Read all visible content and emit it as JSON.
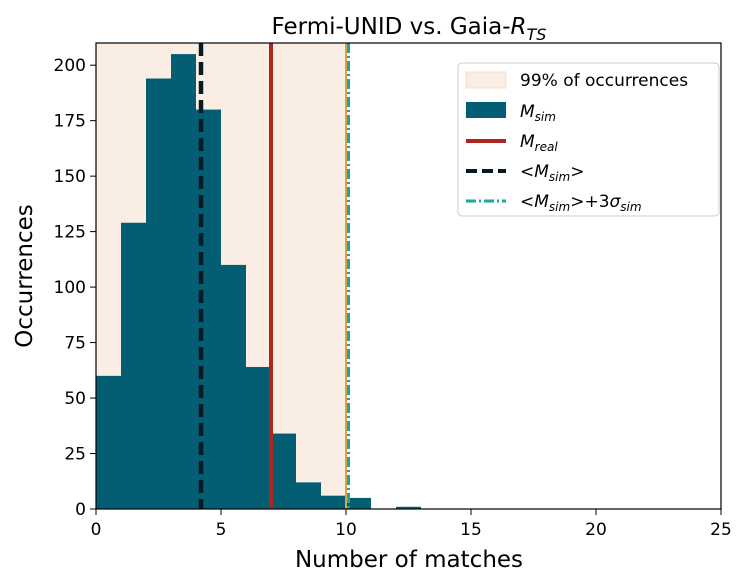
{
  "chart_data": {
    "type": "bar",
    "title_main": "Fermi-UNID vs. Gaia-",
    "title_var": "R",
    "title_sub": "TS",
    "xlabel": "Number of matches",
    "ylabel": "Occurrences",
    "xlim": [
      0,
      25
    ],
    "ylim": [
      0,
      210
    ],
    "xticks": [
      0,
      5,
      10,
      15,
      20,
      25
    ],
    "yticks": [
      0,
      25,
      50,
      75,
      100,
      125,
      150,
      175,
      200
    ],
    "grid": false,
    "legend_position": "top-right",
    "bin_width": 1,
    "bins": [
      {
        "x": 0,
        "count": 60
      },
      {
        "x": 1,
        "count": 129
      },
      {
        "x": 2,
        "count": 194
      },
      {
        "x": 3,
        "count": 205
      },
      {
        "x": 4,
        "count": 180
      },
      {
        "x": 5,
        "count": 110
      },
      {
        "x": 6,
        "count": 64
      },
      {
        "x": 7,
        "count": 34
      },
      {
        "x": 8,
        "count": 12
      },
      {
        "x": 9,
        "count": 6
      },
      {
        "x": 10,
        "count": 5
      },
      {
        "x": 11,
        "count": 0
      },
      {
        "x": 12,
        "count": 1
      },
      {
        "x": 13,
        "count": 0
      }
    ],
    "shaded_region": {
      "from": 0,
      "to": 10
    },
    "lines": {
      "real": 7.0,
      "sim_mean": 4.2,
      "sim_mean_plus_3sigma": 10.1,
      "region_edge": 10.0
    },
    "legend": {
      "shade_label": "99% of occurrences",
      "sim": {
        "var": "M",
        "sub": "sim"
      },
      "real": {
        "var": "M",
        "sub": "real"
      },
      "mean": {
        "pre": "<",
        "var": "M",
        "sub": "sim",
        "post": ">"
      },
      "mean3": {
        "pre": "<",
        "var": "M",
        "sub": "sim",
        "post": ">+3",
        "var2": "σ",
        "sub2": "sim"
      }
    },
    "colors": {
      "bars": "#035e73",
      "shade": "#faeee4",
      "shade_edge": "#f7dcc6",
      "real_line": "#b0261c",
      "mean_line": "#0a1a24",
      "mean3_line": "#19a7a0",
      "edge_line": "#e0a23a"
    }
  }
}
